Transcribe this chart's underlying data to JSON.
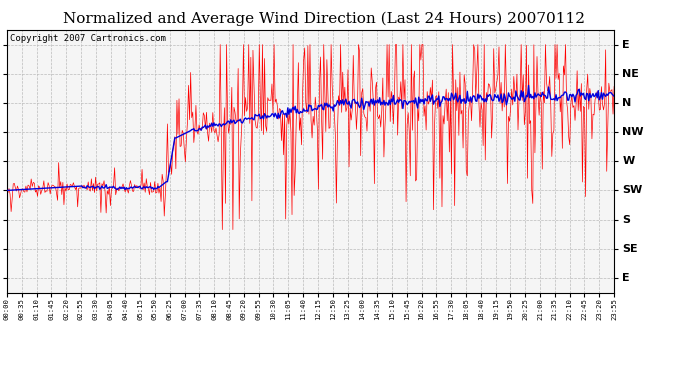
{
  "title": "Normalized and Average Wind Direction (Last 24 Hours) 20070112",
  "copyright": "Copyright 2007 Cartronics.com",
  "y_labels_top_to_bottom": [
    "E",
    "NE",
    "N",
    "NW",
    "W",
    "SW",
    "S",
    "SE",
    "E"
  ],
  "y_tick_values": [
    8,
    7,
    6,
    5,
    4,
    3,
    2,
    1,
    0
  ],
  "x_tick_labels": [
    "00:00",
    "00:35",
    "01:10",
    "01:45",
    "02:20",
    "02:55",
    "03:30",
    "04:05",
    "04:40",
    "05:15",
    "05:50",
    "06:25",
    "07:00",
    "07:35",
    "08:10",
    "08:45",
    "09:20",
    "09:55",
    "10:30",
    "11:05",
    "11:40",
    "12:15",
    "12:50",
    "13:25",
    "14:00",
    "14:35",
    "15:10",
    "15:45",
    "16:20",
    "16:55",
    "17:30",
    "18:05",
    "18:40",
    "19:15",
    "19:50",
    "20:25",
    "21:00",
    "21:35",
    "22:10",
    "22:45",
    "23:20",
    "23:55"
  ],
  "background_color": "#ffffff",
  "plot_bg_color": "#f5f5f5",
  "grid_color": "#bbbbbb",
  "red_color": "#ff0000",
  "blue_color": "#0000dd",
  "title_fontsize": 11,
  "copyright_fontsize": 6.5,
  "n_points": 576
}
